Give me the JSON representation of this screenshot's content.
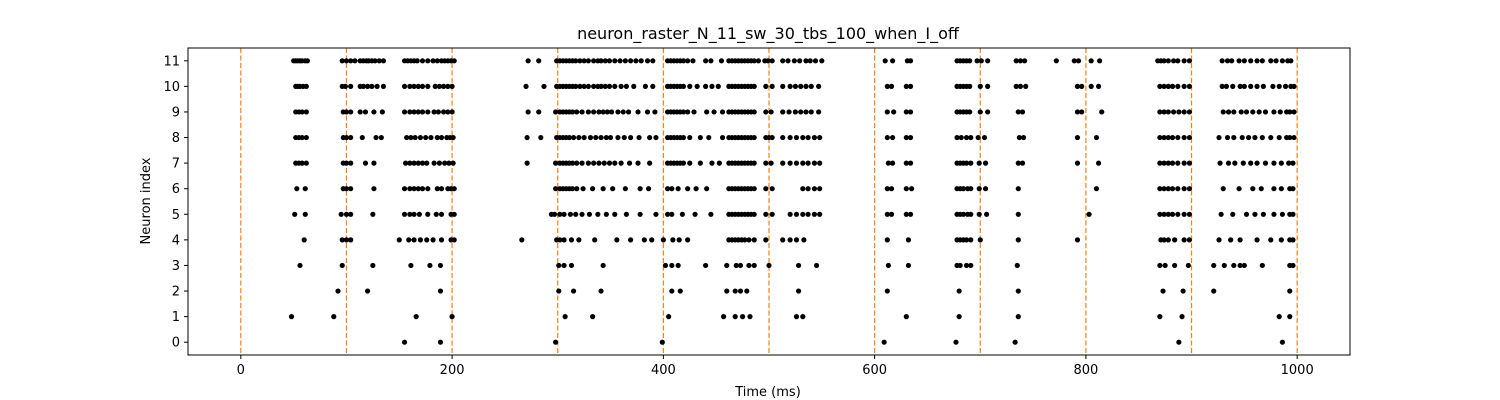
{
  "chart_data": {
    "type": "scatter",
    "title": "neuron_raster_N_11_sw_30_tbs_100_when_I_off",
    "xlabel": "Time (ms)",
    "ylabel": "Neuron index",
    "xlim": [
      -50,
      1050
    ],
    "ylim": [
      -0.5,
      11.5
    ],
    "xticks": [
      0,
      200,
      400,
      600,
      800,
      1000
    ],
    "yticks": [
      0,
      1,
      2,
      3,
      4,
      5,
      6,
      7,
      8,
      9,
      10,
      11
    ],
    "grid": false,
    "legend": "none",
    "marker_color": "#000000",
    "vline_color": "#ff7f0e",
    "vlines": [
      0,
      100,
      200,
      300,
      400,
      500,
      600,
      700,
      800,
      900,
      1000
    ],
    "spikes": [
      {
        "neuron": 11,
        "times": [
          50,
          52,
          54,
          56,
          58,
          61,
          63,
          96,
          100,
          104,
          108,
          113,
          116,
          119,
          121,
          124,
          127,
          131,
          135,
          155,
          158,
          161,
          164,
          167,
          172,
          177,
          182,
          186,
          190,
          193,
          196,
          199,
          202,
          272,
          282,
          299,
          302,
          305,
          308,
          311,
          314,
          317,
          321,
          325,
          329,
          334,
          338,
          341,
          345,
          349,
          354,
          359,
          364,
          369,
          374,
          379,
          385,
          390,
          404,
          407,
          410,
          413,
          416,
          419,
          423,
          428,
          440,
          445,
          455,
          462,
          465,
          468,
          471,
          474,
          477,
          480,
          483,
          486,
          490,
          496,
          499,
          503,
          513,
          518,
          524,
          529,
          535,
          539,
          544,
          550,
          610,
          617,
          631,
          634,
          678,
          681,
          684,
          687,
          690,
          697,
          701,
          707,
          734,
          738,
          742,
          772,
          789,
          793,
          805,
          813,
          868,
          871,
          874,
          878,
          883,
          887,
          893,
          898,
          929,
          934,
          938,
          945,
          950,
          956,
          962,
          967,
          975,
          980,
          986,
          991,
          994
        ]
      },
      {
        "neuron": 10,
        "times": [
          52,
          54,
          56,
          59,
          62,
          96,
          99,
          104,
          113,
          116,
          120,
          124,
          129,
          135,
          155,
          160,
          164,
          168,
          172,
          177,
          184,
          188,
          192,
          196,
          200,
          270,
          287,
          299,
          302,
          305,
          308,
          311,
          314,
          317,
          321,
          325,
          329,
          334,
          338,
          341,
          345,
          349,
          354,
          360,
          365,
          372,
          383,
          390,
          404,
          407,
          410,
          413,
          416,
          419,
          425,
          432,
          440,
          446,
          452,
          462,
          465,
          468,
          471,
          474,
          477,
          480,
          483,
          486,
          497,
          503,
          513,
          520,
          525,
          530,
          535,
          540,
          547,
          612,
          616,
          630,
          634,
          678,
          681,
          684,
          687,
          690,
          700,
          707,
          734,
          738,
          743,
          792,
          796,
          805,
          812,
          870,
          874,
          878,
          882,
          887,
          893,
          898,
          929,
          933,
          939,
          946,
          950,
          956,
          962,
          968,
          977,
          983,
          989,
          994,
          997
        ]
      },
      {
        "neuron": 9,
        "times": [
          52,
          55,
          58,
          62,
          97,
          100,
          104,
          113,
          118,
          126,
          134,
          155,
          160,
          164,
          168,
          172,
          177,
          183,
          187,
          192,
          196,
          200,
          272,
          282,
          298,
          302,
          305,
          308,
          311,
          314,
          318,
          323,
          329,
          334,
          339,
          343,
          347,
          351,
          357,
          362,
          367,
          376,
          385,
          392,
          404,
          407,
          410,
          413,
          416,
          419,
          423,
          429,
          441,
          448,
          456,
          462,
          465,
          468,
          471,
          474,
          477,
          480,
          483,
          486,
          497,
          502,
          513,
          519,
          525,
          530,
          535,
          540,
          547,
          612,
          618,
          630,
          634,
          678,
          681,
          684,
          687,
          690,
          700,
          707,
          736,
          740,
          792,
          796,
          815,
          870,
          874,
          878,
          883,
          888,
          893,
          898,
          930,
          935,
          940,
          947,
          952,
          958,
          964,
          970,
          978,
          984,
          990,
          993,
          997
        ]
      },
      {
        "neuron": 8,
        "times": [
          52,
          55,
          58,
          62,
          97,
          100,
          104,
          115,
          128,
          133,
          157,
          161,
          165,
          170,
          175,
          180,
          186,
          190,
          195,
          198,
          201,
          271,
          284,
          299,
          302,
          305,
          308,
          311,
          315,
          320,
          325,
          331,
          336,
          341,
          346,
          350,
          357,
          363,
          369,
          377,
          387,
          393,
          404,
          407,
          410,
          413,
          416,
          419,
          425,
          435,
          443,
          456,
          462,
          465,
          468,
          471,
          474,
          477,
          480,
          483,
          486,
          497,
          500,
          503,
          513,
          520,
          526,
          532,
          537,
          543,
          548,
          612,
          617,
          630,
          634,
          678,
          682,
          687,
          691,
          698,
          704,
          737,
          741,
          792,
          810,
          870,
          874,
          878,
          882,
          887,
          893,
          898,
          926,
          934,
          940,
          948,
          954,
          960,
          967,
          975,
          983,
          990,
          993,
          997
        ]
      },
      {
        "neuron": 7,
        "times": [
          52,
          55,
          58,
          62,
          97,
          100,
          104,
          118,
          126,
          156,
          160,
          164,
          168,
          172,
          176,
          183,
          188,
          193,
          197,
          201,
          271,
          298,
          302,
          305,
          308,
          311,
          314,
          318,
          323,
          329,
          334,
          339,
          344,
          349,
          354,
          360,
          368,
          376,
          387,
          404,
          407,
          410,
          413,
          416,
          419,
          425,
          435,
          446,
          453,
          462,
          465,
          468,
          471,
          474,
          477,
          480,
          483,
          486,
          497,
          502,
          513,
          520,
          526,
          532,
          537,
          543,
          548,
          613,
          617,
          630,
          634,
          678,
          681,
          684,
          687,
          691,
          699,
          705,
          736,
          740,
          792,
          812,
          870,
          874,
          878,
          882,
          887,
          893,
          898,
          927,
          935,
          941,
          949,
          956,
          962,
          970,
          978,
          985,
          992,
          996
        ]
      },
      {
        "neuron": 6,
        "times": [
          53,
          61,
          97,
          100,
          104,
          126,
          155,
          160,
          164,
          168,
          172,
          177,
          186,
          190,
          196,
          199,
          202,
          298,
          302,
          305,
          308,
          311,
          314,
          318,
          324,
          333,
          343,
          352,
          364,
          378,
          386,
          404,
          408,
          414,
          423,
          431,
          441,
          462,
          465,
          468,
          471,
          474,
          477,
          480,
          483,
          486,
          497,
          503,
          532,
          537,
          543,
          548,
          612,
          616,
          630,
          635,
          678,
          681,
          684,
          688,
          691,
          699,
          705,
          736,
          810,
          870,
          874,
          878,
          882,
          887,
          893,
          898,
          930,
          945,
          958,
          966,
          978,
          985,
          993,
          996
        ]
      },
      {
        "neuron": 5,
        "times": [
          51,
          61,
          95,
          100,
          104,
          125,
          155,
          160,
          164,
          169,
          177,
          185,
          190,
          199,
          202,
          294,
          297,
          302,
          306,
          312,
          317,
          323,
          330,
          338,
          346,
          354,
          365,
          378,
          393,
          404,
          408,
          418,
          430,
          445,
          462,
          465,
          468,
          471,
          474,
          477,
          480,
          483,
          486,
          497,
          503,
          520,
          526,
          532,
          537,
          543,
          548,
          612,
          616,
          630,
          634,
          678,
          681,
          684,
          688,
          691,
          699,
          706,
          736,
          803,
          870,
          874,
          878,
          882,
          887,
          893,
          898,
          928,
          939,
          952,
          960,
          968,
          978,
          986,
          993,
          996
        ]
      },
      {
        "neuron": 4,
        "times": [
          60,
          96,
          100,
          104,
          150,
          159,
          164,
          170,
          176,
          182,
          190,
          199,
          202,
          266,
          299,
          302,
          306,
          313,
          320,
          335,
          356,
          369,
          382,
          389,
          400,
          409,
          415,
          423,
          462,
          465,
          468,
          471,
          474,
          477,
          481,
          486,
          497,
          513,
          520,
          526,
          533,
          612,
          632,
          678,
          681,
          684,
          687,
          691,
          700,
          736,
          792,
          871,
          874,
          878,
          884,
          893,
          898,
          926,
          937,
          946,
          962,
          975,
          985,
          993,
          996
        ]
      },
      {
        "neuron": 3,
        "times": [
          56,
          96,
          125,
          161,
          179,
          189,
          301,
          306,
          313,
          343,
          402,
          408,
          414,
          440,
          460,
          469,
          473,
          481,
          486,
          500,
          528,
          545,
          613,
          632,
          678,
          681,
          687,
          691,
          735,
          870,
          875,
          884,
          897,
          921,
          931,
          940,
          946,
          950,
          967,
          993,
          996
        ]
      },
      {
        "neuron": 2,
        "times": [
          92,
          120,
          189,
          301,
          315,
          341,
          408,
          416,
          460,
          468,
          473,
          479,
          528,
          612,
          680,
          736,
          873,
          892,
          921,
          993
        ]
      },
      {
        "neuron": 1,
        "times": [
          48,
          88,
          166,
          200,
          307,
          333,
          405,
          457,
          468,
          475,
          482,
          526,
          532,
          630,
          680,
          736,
          870,
          891,
          983,
          993
        ]
      },
      {
        "neuron": 0,
        "times": [
          155,
          189,
          298,
          399,
          609,
          677,
          733,
          888,
          986
        ]
      }
    ]
  }
}
